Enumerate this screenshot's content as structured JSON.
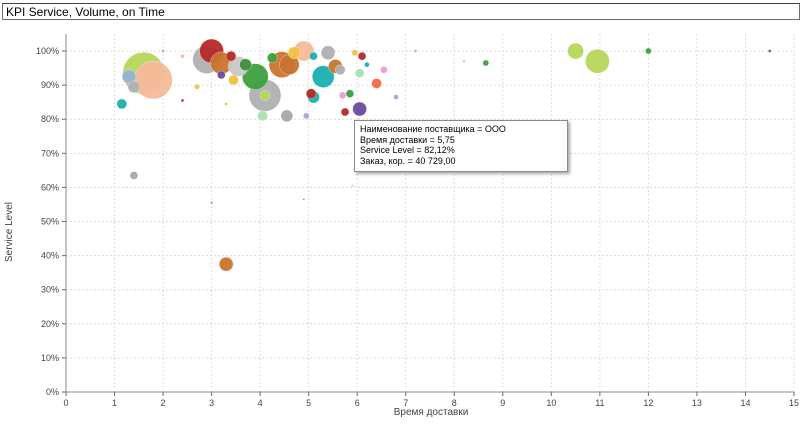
{
  "window": {
    "title": "KPI Service, Volume, on Time"
  },
  "tooltip": {
    "line1": "Наименование поставщика = ООО",
    "line2": "Время доставки = 5,75",
    "line3": "Service Level = 82,12%",
    "line4": "Заказ, кор. = 40 729,00"
  },
  "chart_data": {
    "type": "scatter",
    "xlabel": "Время доставки",
    "ylabel": "Service Level",
    "xlim": [
      0,
      15
    ],
    "ylim": [
      0,
      1.05
    ],
    "x_ticks": [
      "0",
      "1",
      "2",
      "3",
      "4",
      "5",
      "6",
      "7",
      "8",
      "9",
      "10",
      "11",
      "12",
      "13",
      "14",
      "15"
    ],
    "y_ticks": [
      "0%",
      "10%",
      "20%",
      "30%",
      "40%",
      "50%",
      "60%",
      "70%",
      "80%",
      "90%",
      "100%"
    ],
    "grid": true,
    "points": [
      {
        "x": 1.6,
        "y": 0.935,
        "size": 42,
        "color": "#b5d75a"
      },
      {
        "x": 1.8,
        "y": 0.915,
        "size": 38,
        "color": "#f5b99a"
      },
      {
        "x": 1.3,
        "y": 0.925,
        "size": 14,
        "color": "#9ab0d8"
      },
      {
        "x": 1.4,
        "y": 0.895,
        "size": 12,
        "color": "#b0b0b0"
      },
      {
        "x": 1.15,
        "y": 0.845,
        "size": 10,
        "color": "#1ab0ae"
      },
      {
        "x": 1.4,
        "y": 0.635,
        "size": 8,
        "color": "#a8a8a8"
      },
      {
        "x": 1.25,
        "y": 0.6,
        "size": 2,
        "color": "#c8c8c8"
      },
      {
        "x": 2.4,
        "y": 0.855,
        "size": 3,
        "color": "#b52a2a"
      },
      {
        "x": 2.4,
        "y": 0.985,
        "size": 4,
        "color": "#f5b99a"
      },
      {
        "x": 2.0,
        "y": 1.0,
        "size": 3,
        "color": "#b0b0b0"
      },
      {
        "x": 2.7,
        "y": 0.895,
        "size": 5,
        "color": "#f2c040"
      },
      {
        "x": 2.9,
        "y": 0.975,
        "size": 28,
        "color": "#b0b0b0"
      },
      {
        "x": 3.0,
        "y": 1.0,
        "size": 24,
        "color": "#b52a2a"
      },
      {
        "x": 3.2,
        "y": 0.965,
        "size": 22,
        "color": "#c8752e"
      },
      {
        "x": 3.4,
        "y": 0.985,
        "size": 10,
        "color": "#b52a2a"
      },
      {
        "x": 3.2,
        "y": 0.93,
        "size": 8,
        "color": "#6a4c9c"
      },
      {
        "x": 3.45,
        "y": 0.915,
        "size": 10,
        "color": "#f2c040"
      },
      {
        "x": 3.55,
        "y": 0.955,
        "size": 20,
        "color": "#c8c8c8"
      },
      {
        "x": 3.7,
        "y": 0.96,
        "size": 12,
        "color": "#3d8f3d"
      },
      {
        "x": 3.9,
        "y": 0.925,
        "size": 26,
        "color": "#3ca03c"
      },
      {
        "x": 4.1,
        "y": 0.87,
        "size": 32,
        "color": "#b0b0b0"
      },
      {
        "x": 4.1,
        "y": 0.87,
        "size": 10,
        "color": "#b5d75a"
      },
      {
        "x": 4.05,
        "y": 0.81,
        "size": 10,
        "color": "#a8e0b0"
      },
      {
        "x": 4.25,
        "y": 0.98,
        "size": 10,
        "color": "#3ca03c"
      },
      {
        "x": 4.45,
        "y": 0.96,
        "size": 26,
        "color": "#c8752e"
      },
      {
        "x": 4.6,
        "y": 0.96,
        "size": 20,
        "color": "#c8752e"
      },
      {
        "x": 4.7,
        "y": 0.995,
        "size": 12,
        "color": "#f2c040"
      },
      {
        "x": 4.55,
        "y": 0.81,
        "size": 12,
        "color": "#a8a8a8"
      },
      {
        "x": 4.9,
        "y": 1.0,
        "size": 20,
        "color": "#f5b99a"
      },
      {
        "x": 5.05,
        "y": 0.875,
        "size": 10,
        "color": "#b52a2a"
      },
      {
        "x": 5.1,
        "y": 0.985,
        "size": 8,
        "color": "#1ab0ae"
      },
      {
        "x": 5.4,
        "y": 0.995,
        "size": 14,
        "color": "#b0b0b0"
      },
      {
        "x": 5.3,
        "y": 0.925,
        "size": 22,
        "color": "#1ab0ae"
      },
      {
        "x": 5.55,
        "y": 0.955,
        "size": 14,
        "color": "#c8752e"
      },
      {
        "x": 5.65,
        "y": 0.945,
        "size": 10,
        "color": "#b0b0b0"
      },
      {
        "x": 5.75,
        "y": 0.8212,
        "size": 8,
        "color": "#b52a2a"
      },
      {
        "x": 5.85,
        "y": 0.875,
        "size": 8,
        "color": "#3ca03c"
      },
      {
        "x": 6.05,
        "y": 0.83,
        "size": 14,
        "color": "#6a4c9c"
      },
      {
        "x": 6.05,
        "y": 0.935,
        "size": 9,
        "color": "#a8e0b0"
      },
      {
        "x": 6.1,
        "y": 0.985,
        "size": 8,
        "color": "#b52a2a"
      },
      {
        "x": 6.4,
        "y": 0.905,
        "size": 10,
        "color": "#f06a4a"
      },
      {
        "x": 6.2,
        "y": 0.96,
        "size": 5,
        "color": "#1ab0ae"
      },
      {
        "x": 6.55,
        "y": 0.945,
        "size": 7,
        "color": "#f09ad8"
      },
      {
        "x": 6.8,
        "y": 0.865,
        "size": 5,
        "color": "#9ab0d8"
      },
      {
        "x": 5.95,
        "y": 0.995,
        "size": 6,
        "color": "#f2c040"
      },
      {
        "x": 5.1,
        "y": 0.865,
        "size": 12,
        "color": "#1ab0ae"
      },
      {
        "x": 5.7,
        "y": 0.87,
        "size": 7,
        "color": "#f09ad8"
      },
      {
        "x": 4.95,
        "y": 0.81,
        "size": 6,
        "color": "#b0a0d8"
      },
      {
        "x": 5.9,
        "y": 0.605,
        "size": 2,
        "color": "#a0c8e0"
      },
      {
        "x": 3.0,
        "y": 0.555,
        "size": 3,
        "color": "#b0b0b0"
      },
      {
        "x": 3.3,
        "y": 0.6,
        "size": 2,
        "color": "#f5b99a"
      },
      {
        "x": 3.3,
        "y": 0.375,
        "size": 14,
        "color": "#c8752e"
      },
      {
        "x": 3.3,
        "y": 0.845,
        "size": 3,
        "color": "#b5d75a"
      },
      {
        "x": 4.9,
        "y": 0.565,
        "size": 2,
        "color": "#c8752e"
      },
      {
        "x": 7.2,
        "y": 1.0,
        "size": 3,
        "color": "#b0b0b0"
      },
      {
        "x": 8.2,
        "y": 0.97,
        "size": 3,
        "color": "#a8e0b0"
      },
      {
        "x": 8.65,
        "y": 0.965,
        "size": 6,
        "color": "#3ca03c"
      },
      {
        "x": 10.5,
        "y": 1.0,
        "size": 16,
        "color": "#b5d75a"
      },
      {
        "x": 10.95,
        "y": 0.97,
        "size": 24,
        "color": "#b5d75a"
      },
      {
        "x": 12.0,
        "y": 1.0,
        "size": 6,
        "color": "#3ca03c"
      },
      {
        "x": 14.5,
        "y": 1.0,
        "size": 3,
        "color": "#6a4c9c"
      }
    ]
  }
}
